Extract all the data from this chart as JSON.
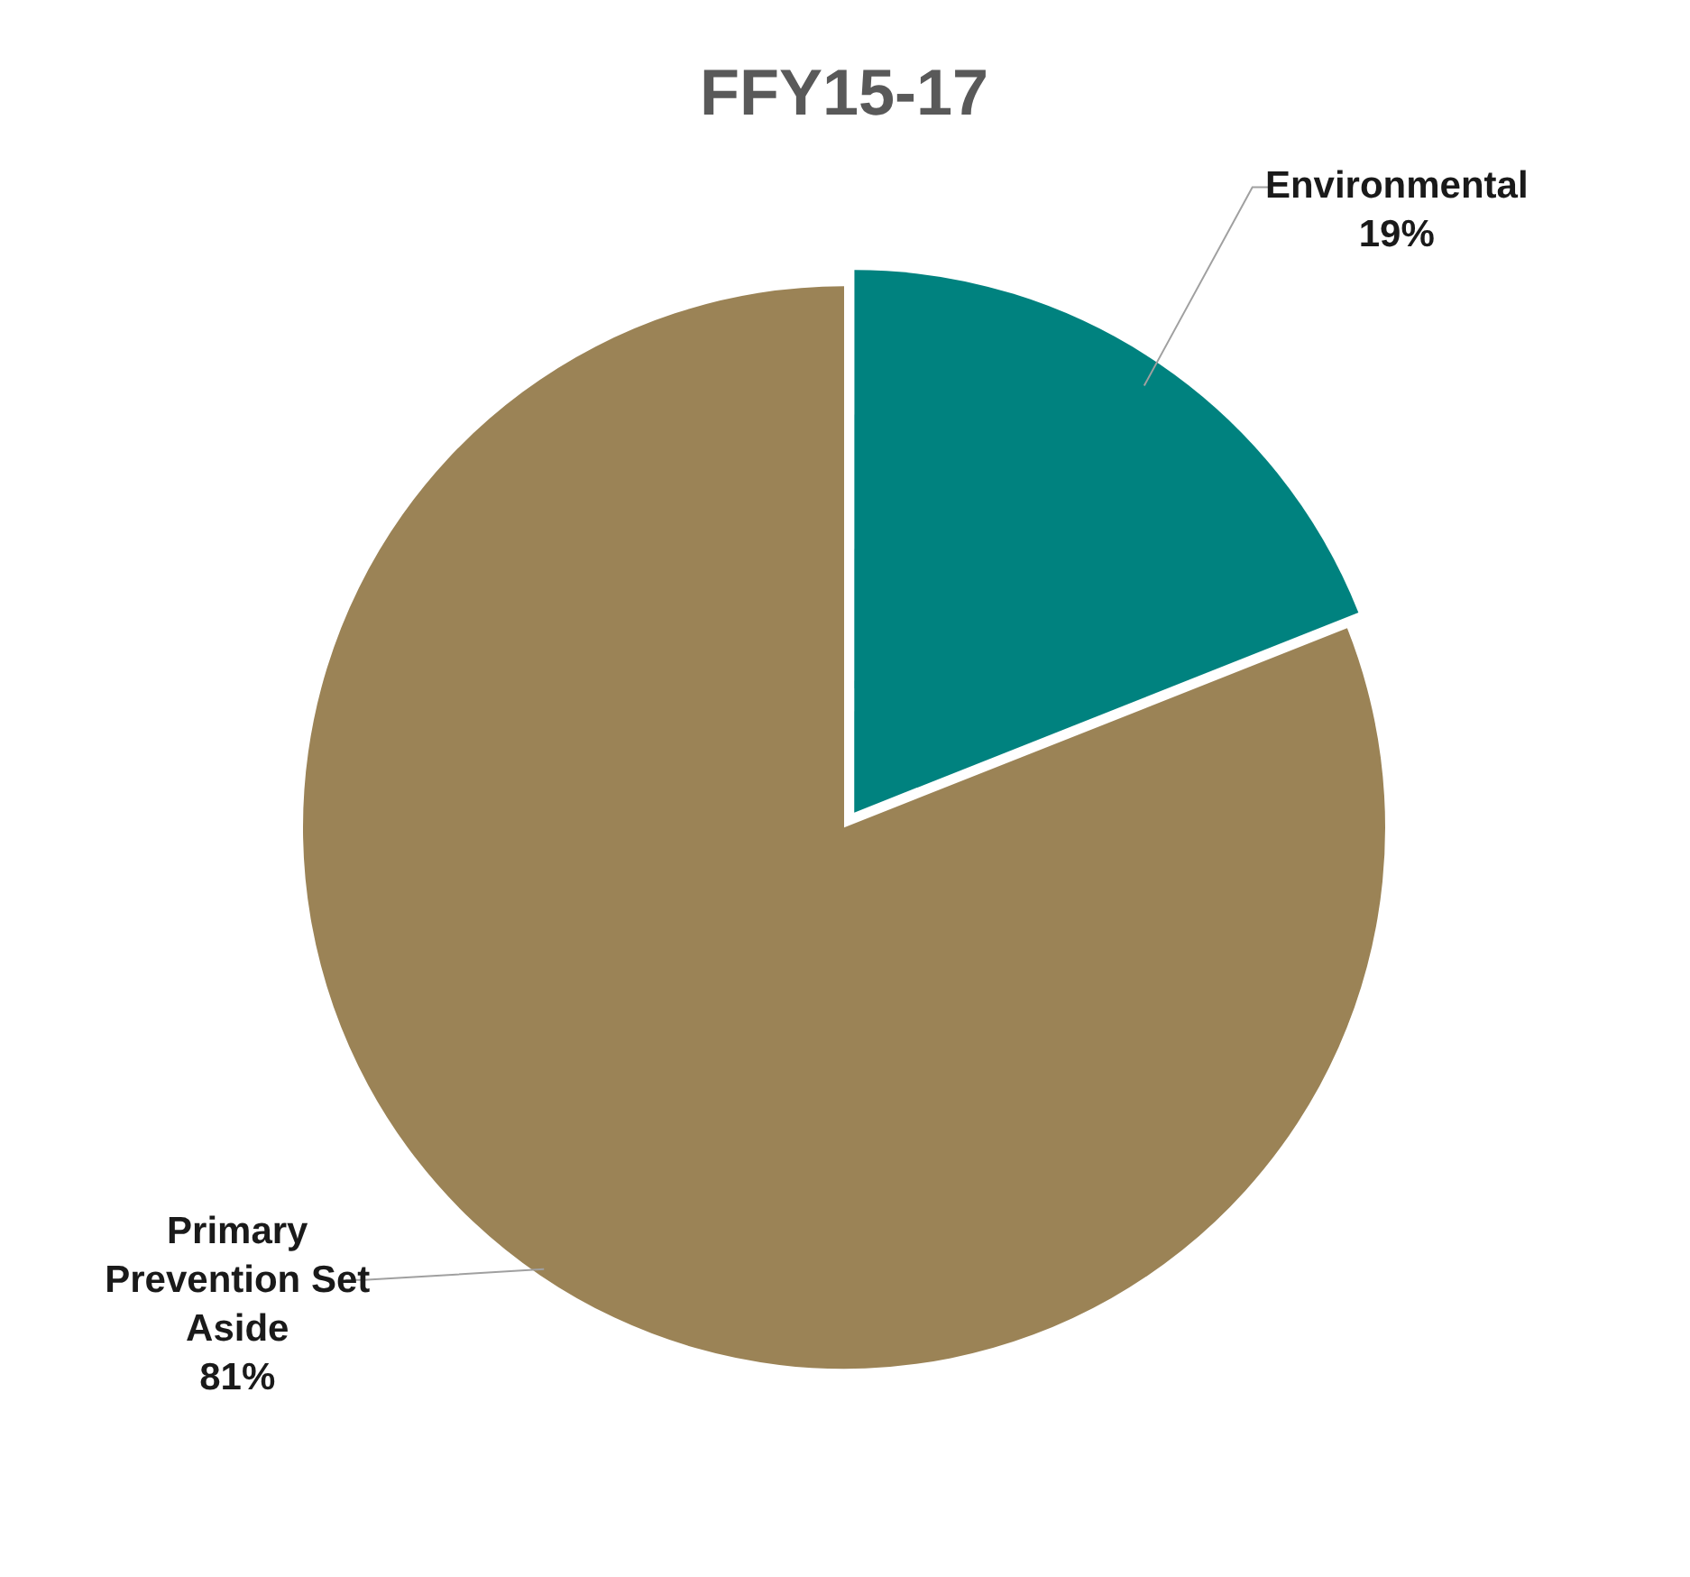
{
  "chart_data": {
    "type": "pie",
    "title": "FFY15-17",
    "categories": [
      "Environmental",
      "Primary Prevention Set Aside"
    ],
    "values": [
      19,
      81
    ],
    "colors": [
      "#00827f",
      "#9b8356"
    ],
    "value_labels": [
      "19%",
      "81%"
    ],
    "legend": false
  }
}
